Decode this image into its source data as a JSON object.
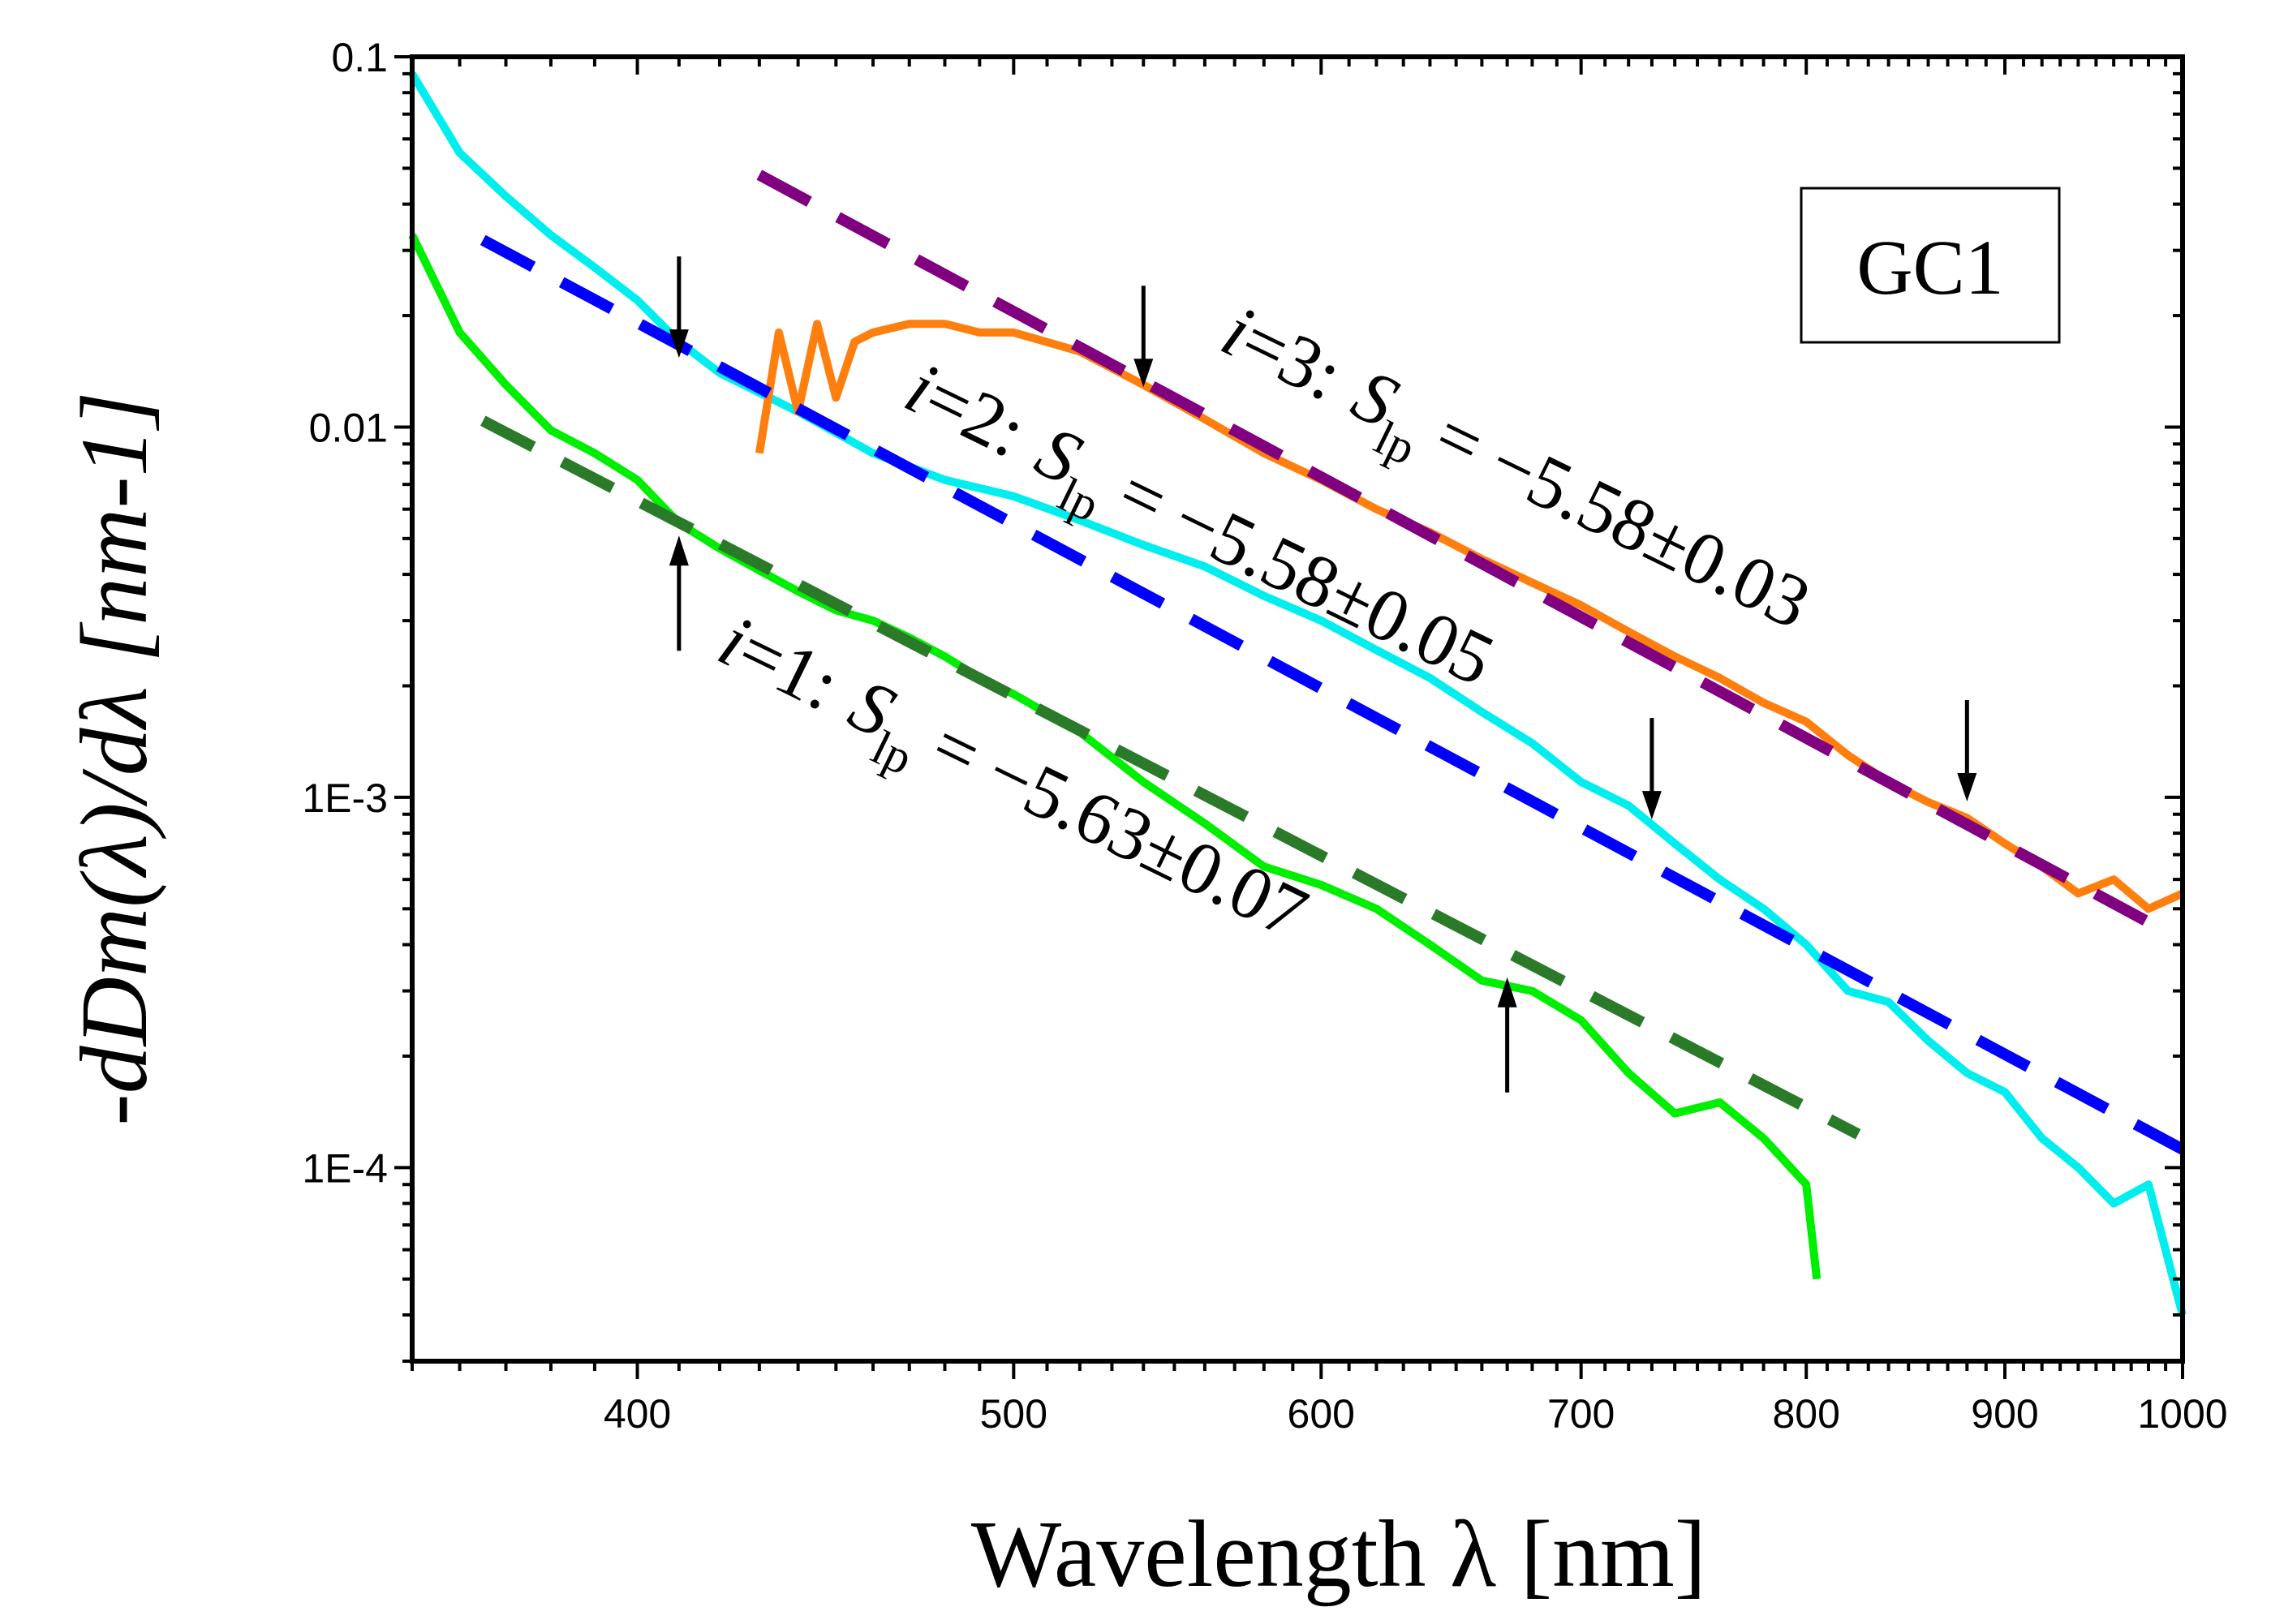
{
  "chart_data": {
    "type": "line",
    "x_scale": "log",
    "y_scale": "log",
    "xlabel": "Wavelength λ [nm]",
    "ylabel": "-dDm(λ)/dλ [nm-1]",
    "xlim": [
      350,
      1000
    ],
    "ylim": [
      3e-05,
      0.1
    ],
    "x_ticks": [
      400,
      500,
      600,
      700,
      800,
      900,
      1000
    ],
    "x_tick_labels": [
      "400",
      "500",
      "600",
      "700",
      "800",
      "900",
      "1000"
    ],
    "y_ticks": [
      0.0001,
      0.001,
      0.01,
      0.1
    ],
    "y_tick_labels": [
      "1E-4",
      "1E-3",
      "0.01",
      "0.1"
    ],
    "legend_box": "GC1",
    "series": [
      {
        "color": "#00ee00",
        "x": [
          350,
          360,
          370,
          380,
          390,
          400,
          410,
          420,
          430,
          440,
          450,
          460,
          470,
          480,
          490,
          500,
          520,
          540,
          560,
          580,
          600,
          620,
          640,
          660,
          680,
          700,
          720,
          740,
          760,
          780,
          800,
          805
        ],
        "y": [
          0.033,
          0.018,
          0.013,
          0.0098,
          0.0085,
          0.0072,
          0.0055,
          0.0047,
          0.0041,
          0.0036,
          0.0032,
          0.003,
          0.0027,
          0.0024,
          0.0021,
          0.0019,
          0.0015,
          0.0011,
          0.00085,
          0.00065,
          0.00058,
          0.0005,
          0.0004,
          0.00032,
          0.0003,
          0.00025,
          0.00018,
          0.00014,
          0.00015,
          0.00012,
          9e-05,
          5e-05
        ]
      },
      {
        "color": "#00eeee",
        "x": [
          350,
          360,
          370,
          380,
          390,
          400,
          410,
          420,
          440,
          460,
          480,
          500,
          520,
          540,
          560,
          580,
          600,
          620,
          640,
          660,
          680,
          700,
          720,
          740,
          760,
          780,
          800,
          820,
          840,
          860,
          880,
          900,
          920,
          940,
          960,
          980,
          1000
        ],
        "y": [
          0.09,
          0.055,
          0.042,
          0.033,
          0.027,
          0.022,
          0.017,
          0.014,
          0.011,
          0.0085,
          0.0072,
          0.0065,
          0.0056,
          0.0048,
          0.0042,
          0.0035,
          0.003,
          0.0025,
          0.0021,
          0.0017,
          0.0014,
          0.0011,
          0.00095,
          0.00075,
          0.0006,
          0.0005,
          0.0004,
          0.0003,
          0.00028,
          0.00022,
          0.00018,
          0.00016,
          0.00012,
          0.0001,
          8e-05,
          9e-05,
          4e-05
        ]
      },
      {
        "color": "#ff7f0e",
        "x": [
          430,
          435,
          440,
          445,
          450,
          455,
          460,
          470,
          480,
          490,
          500,
          520,
          540,
          560,
          580,
          600,
          620,
          640,
          660,
          680,
          700,
          720,
          740,
          760,
          780,
          800,
          820,
          840,
          860,
          880,
          900,
          920,
          940,
          960,
          980,
          1000
        ],
        "y": [
          0.0085,
          0.018,
          0.011,
          0.019,
          0.012,
          0.017,
          0.018,
          0.019,
          0.019,
          0.018,
          0.018,
          0.016,
          0.013,
          0.0105,
          0.0085,
          0.0072,
          0.006,
          0.0052,
          0.0044,
          0.0038,
          0.0033,
          0.0028,
          0.0024,
          0.0021,
          0.0018,
          0.0016,
          0.0013,
          0.0011,
          0.00097,
          0.00088,
          0.00075,
          0.00065,
          0.00055,
          0.0006,
          0.0005,
          0.00055
        ]
      }
    ],
    "fits": [
      {
        "color": "#2a7a2a",
        "x": [
          365,
          825
        ],
        "y": [
          0.0104,
          0.000123
        ]
      },
      {
        "color": "#0000ff",
        "x": [
          365,
          1000
        ],
        "y": [
          0.032,
          0.000112
        ]
      },
      {
        "color": "#800080",
        "x": [
          430,
          980
        ],
        "y": [
          0.048,
          0.00046
        ]
      }
    ],
    "arrows": [
      {
        "x": 410,
        "y": 0.015,
        "dir": "down"
      },
      {
        "x": 540,
        "y": 0.0125,
        "dir": "down"
      },
      {
        "x": 410,
        "y": 0.0053,
        "dir": "up"
      },
      {
        "x": 670,
        "y": 0.00034,
        "dir": "up"
      },
      {
        "x": 730,
        "y": 0.00085,
        "dir": "down"
      },
      {
        "x": 880,
        "y": 0.00095,
        "dir": "down"
      }
    ],
    "annotations": [
      {
        "i": "i",
        "num": "=1:",
        "S": "S",
        "sub": "lp",
        "val": "= −5.63±0.07"
      },
      {
        "i": "i",
        "num": "=2:",
        "S": "S",
        "sub": "lp",
        "val": "= −5.58±0.05"
      },
      {
        "i": "i",
        "num": "=3:",
        "S": "S",
        "sub": "lp",
        "val": "= −5.58±0.03"
      }
    ]
  }
}
